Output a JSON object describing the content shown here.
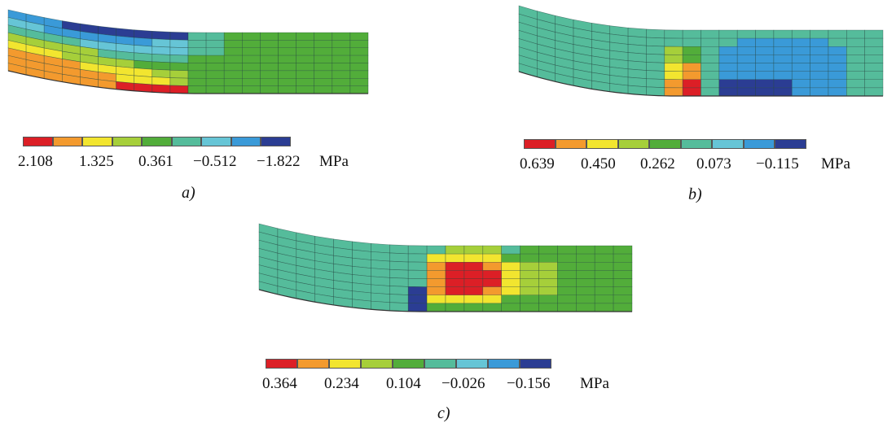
{
  "palette": [
    "#dc1f26",
    "#f39a2e",
    "#f2e52f",
    "#a6cf3a",
    "#52ad3a",
    "#55bc9b",
    "#66c5d6",
    "#3a9ad8",
    "#2b3d93"
  ],
  "panels": [
    {
      "caption": "a)",
      "unit": "MPa",
      "ticks": [
        "2.108",
        "1.325",
        "0.361",
        "−0.512",
        "−1.822"
      ],
      "colorbar": [
        "#dc1f26",
        "#f39a2e",
        "#f2e52f",
        "#a6cf3a",
        "#52ad3a",
        "#55bc9b",
        "#66c5d6",
        "#3a9ad8",
        "#2b3d93"
      ]
    },
    {
      "caption": "b)",
      "unit": "MPa",
      "ticks": [
        "0.639",
        "0.450",
        "0.262",
        "0.073",
        "−0.115"
      ],
      "colorbar": [
        "#dc1f26",
        "#f39a2e",
        "#f2e52f",
        "#a6cf3a",
        "#52ad3a",
        "#55bc9b",
        "#66c5d6",
        "#3a9ad8",
        "#2b3d93"
      ]
    },
    {
      "caption": "c)",
      "unit": "MPa",
      "ticks": [
        "0.364",
        "0.234",
        "0.104",
        "−0.026",
        "−0.156"
      ],
      "colorbar": [
        "#dc1f26",
        "#f39a2e",
        "#f2e52f",
        "#a6cf3a",
        "#52ad3a",
        "#55bc9b",
        "#66c5d6",
        "#3a9ad8",
        "#2b3d93"
      ]
    }
  ]
}
